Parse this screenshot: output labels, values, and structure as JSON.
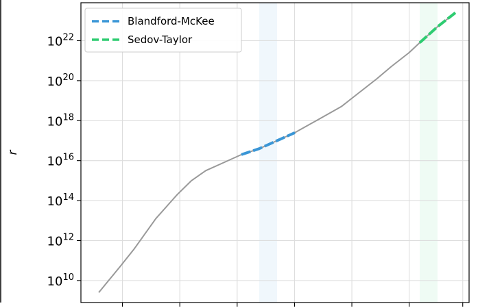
{
  "chart_data": {
    "type": "line",
    "ylabel": "r",
    "yscale": "log",
    "ylim_exp": [
      8.9,
      23.9
    ],
    "xlim": [
      0,
      1
    ],
    "grid": true,
    "legend": {
      "placement": "top-left",
      "entries": [
        {
          "label": "Blandford-McKee",
          "color": "#3a96d6",
          "style": "dashed"
        },
        {
          "label": "Sedov-Taylor",
          "color": "#2ecc71",
          "style": "dashed"
        }
      ]
    },
    "yticks": [
      {
        "base": "10",
        "exp": "10"
      },
      {
        "base": "10",
        "exp": "12"
      },
      {
        "base": "10",
        "exp": "14"
      },
      {
        "base": "10",
        "exp": "16"
      },
      {
        "base": "10",
        "exp": "18"
      },
      {
        "base": "10",
        "exp": "20"
      },
      {
        "base": "10",
        "exp": "22"
      }
    ],
    "xgrid_fractions": [
      0.11,
      0.26,
      0.41,
      0.56,
      0.71,
      0.86,
      1.0
    ],
    "shaded_regions": [
      {
        "name": "Blandford-McKee",
        "x": [
          0.45,
          0.5
        ],
        "color": "#3a96d6",
        "opacity": 0.08
      },
      {
        "name": "Sedov-Taylor",
        "x": [
          0.9,
          0.95
        ],
        "color": "#2ecc71",
        "opacity": 0.08
      }
    ],
    "series": [
      {
        "color": "#999999",
        "style": "solid",
        "points": [
          [
            0.0,
            9.4
          ],
          [
            0.06,
            10.7
          ],
          [
            0.1,
            11.6
          ],
          [
            0.16,
            13.1
          ],
          [
            0.2,
            13.9
          ],
          [
            0.22,
            14.3
          ],
          [
            0.26,
            15.0
          ],
          [
            0.3,
            15.5
          ],
          [
            0.35,
            15.9
          ],
          [
            0.4,
            16.3
          ],
          [
            0.45,
            16.6
          ],
          [
            0.5,
            17.0
          ],
          [
            0.55,
            17.4
          ],
          [
            0.58,
            17.7
          ],
          [
            0.62,
            18.1
          ],
          [
            0.68,
            18.7
          ],
          [
            0.73,
            19.4
          ],
          [
            0.78,
            20.1
          ],
          [
            0.82,
            20.7
          ],
          [
            0.87,
            21.4
          ],
          [
            0.9,
            21.9
          ],
          [
            0.95,
            22.7
          ],
          [
            1.0,
            23.4
          ]
        ]
      },
      {
        "name": "Blandford-McKee",
        "color": "#3a96d6",
        "style": "dashed",
        "points": [
          [
            0.4,
            16.3
          ],
          [
            0.45,
            16.6
          ],
          [
            0.5,
            17.0
          ],
          [
            0.55,
            17.4
          ]
        ]
      },
      {
        "name": "Sedov-Taylor",
        "color": "#2ecc71",
        "style": "dashed",
        "points": [
          [
            0.9,
            21.9
          ],
          [
            0.95,
            22.7
          ],
          [
            1.0,
            23.4
          ]
        ]
      }
    ]
  }
}
